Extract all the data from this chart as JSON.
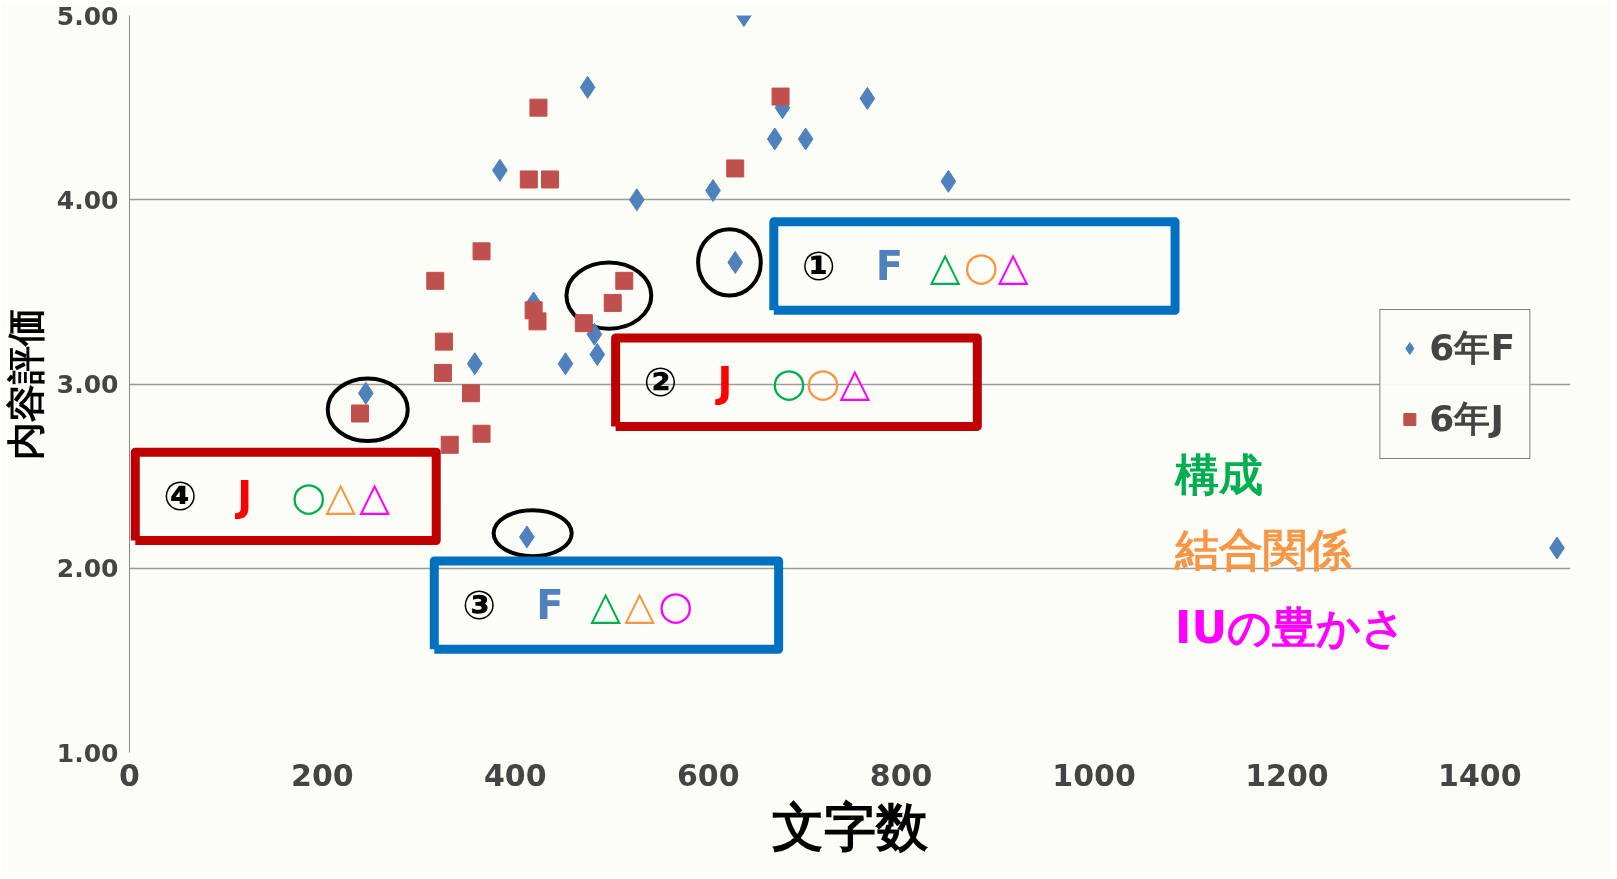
{
  "chart_data": {
    "type": "scatter",
    "xlabel": "文字数",
    "ylabel": "内容評価",
    "xlim": [
      0,
      1494
    ],
    "ylim": [
      1,
      5
    ],
    "xticks": [
      0,
      200,
      400,
      600,
      800,
      1000,
      1200,
      1400
    ],
    "yticks": [
      {
        "value": 1,
        "label": "1.00"
      },
      {
        "value": 2,
        "label": "2.00"
      },
      {
        "value": 3,
        "label": "3.00"
      },
      {
        "value": 4,
        "label": "4.00"
      },
      {
        "value": 5,
        "label": "5.00"
      }
    ],
    "grid": "y",
    "legend": "right",
    "series": [
      {
        "name": "6年F",
        "color": "#4f81bd",
        "marker": "diamond",
        "x": [
          637,
          475,
          384,
          526,
          605,
          669,
          677,
          701,
          765,
          849,
          628,
          419,
          482,
          485,
          452,
          358,
          245,
          412,
          1480
        ],
        "values": [
          5.0,
          4.61,
          4.16,
          4.0,
          4.05,
          4.33,
          4.5,
          4.33,
          4.55,
          4.1,
          3.66,
          3.44,
          3.27,
          3.16,
          3.11,
          3.11,
          2.95,
          2.17,
          2.11
        ]
      },
      {
        "name": "6年J",
        "color": "#c0504d",
        "marker": "square",
        "x": [
          424,
          414,
          436,
          365,
          317,
          326,
          325,
          354,
          365,
          332,
          239,
          419,
          423,
          471,
          501,
          513,
          628,
          675
        ],
        "values": [
          4.5,
          4.11,
          4.11,
          3.72,
          3.56,
          3.23,
          3.06,
          2.95,
          2.73,
          2.67,
          2.84,
          3.4,
          3.34,
          3.33,
          3.44,
          3.56,
          4.17,
          4.56
        ]
      }
    ],
    "annotations": [
      "① F △○△",
      "② J ○○△",
      "③ F △△○",
      "④ J ○△△",
      "構成",
      "結合関係",
      "IUの豊かさ"
    ]
  }
}
